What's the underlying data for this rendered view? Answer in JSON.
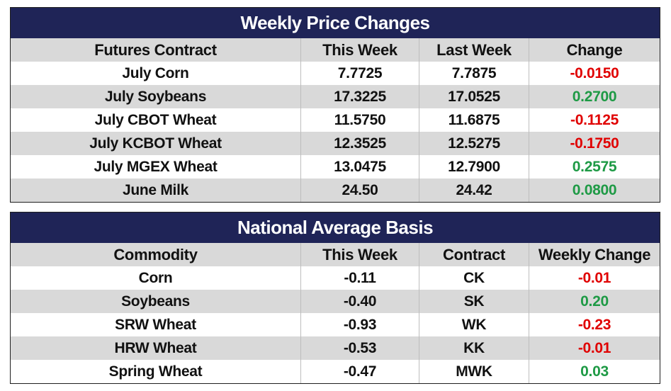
{
  "weekly": {
    "title": "Weekly Price Changes",
    "headers": [
      "Futures Contract",
      "This Week",
      "Last Week",
      "Change"
    ],
    "rows": [
      {
        "name": "July Corn",
        "this_week": "7.7725",
        "last_week": "7.7875",
        "change": "-0.0150",
        "dir": "neg"
      },
      {
        "name": "July Soybeans",
        "this_week": "17.3225",
        "last_week": "17.0525",
        "change": "0.2700",
        "dir": "pos"
      },
      {
        "name": "July CBOT Wheat",
        "this_week": "11.5750",
        "last_week": "11.6875",
        "change": "-0.1125",
        "dir": "neg"
      },
      {
        "name": "July KCBOT Wheat",
        "this_week": "12.3525",
        "last_week": "12.5275",
        "change": "-0.1750",
        "dir": "neg"
      },
      {
        "name": "July MGEX Wheat",
        "this_week": "13.0475",
        "last_week": "12.7900",
        "change": "0.2575",
        "dir": "pos"
      },
      {
        "name": "June Milk",
        "this_week": "24.50",
        "last_week": "24.42",
        "change": "0.0800",
        "dir": "pos"
      }
    ]
  },
  "basis": {
    "title": "National Average Basis",
    "headers": [
      "Commodity",
      "This Week",
      "Contract",
      "Weekly Change"
    ],
    "rows": [
      {
        "name": "Corn",
        "this_week": "-0.11",
        "contract": "CK",
        "change": "-0.01",
        "dir": "neg"
      },
      {
        "name": "Soybeans",
        "this_week": "-0.40",
        "contract": "SK",
        "change": "0.20",
        "dir": "pos"
      },
      {
        "name": "SRW Wheat",
        "this_week": "-0.93",
        "contract": "WK",
        "change": "-0.23",
        "dir": "neg"
      },
      {
        "name": "HRW Wheat",
        "this_week": "-0.53",
        "contract": "KK",
        "change": "-0.01",
        "dir": "neg"
      },
      {
        "name": "Spring Wheat",
        "this_week": "-0.47",
        "contract": "MWK",
        "change": "0.03",
        "dir": "pos"
      }
    ]
  },
  "colors": {
    "title_bg": "#1f2457",
    "negative": "#e00000",
    "positive": "#1e9a45",
    "shade": "#d9d9d9"
  }
}
